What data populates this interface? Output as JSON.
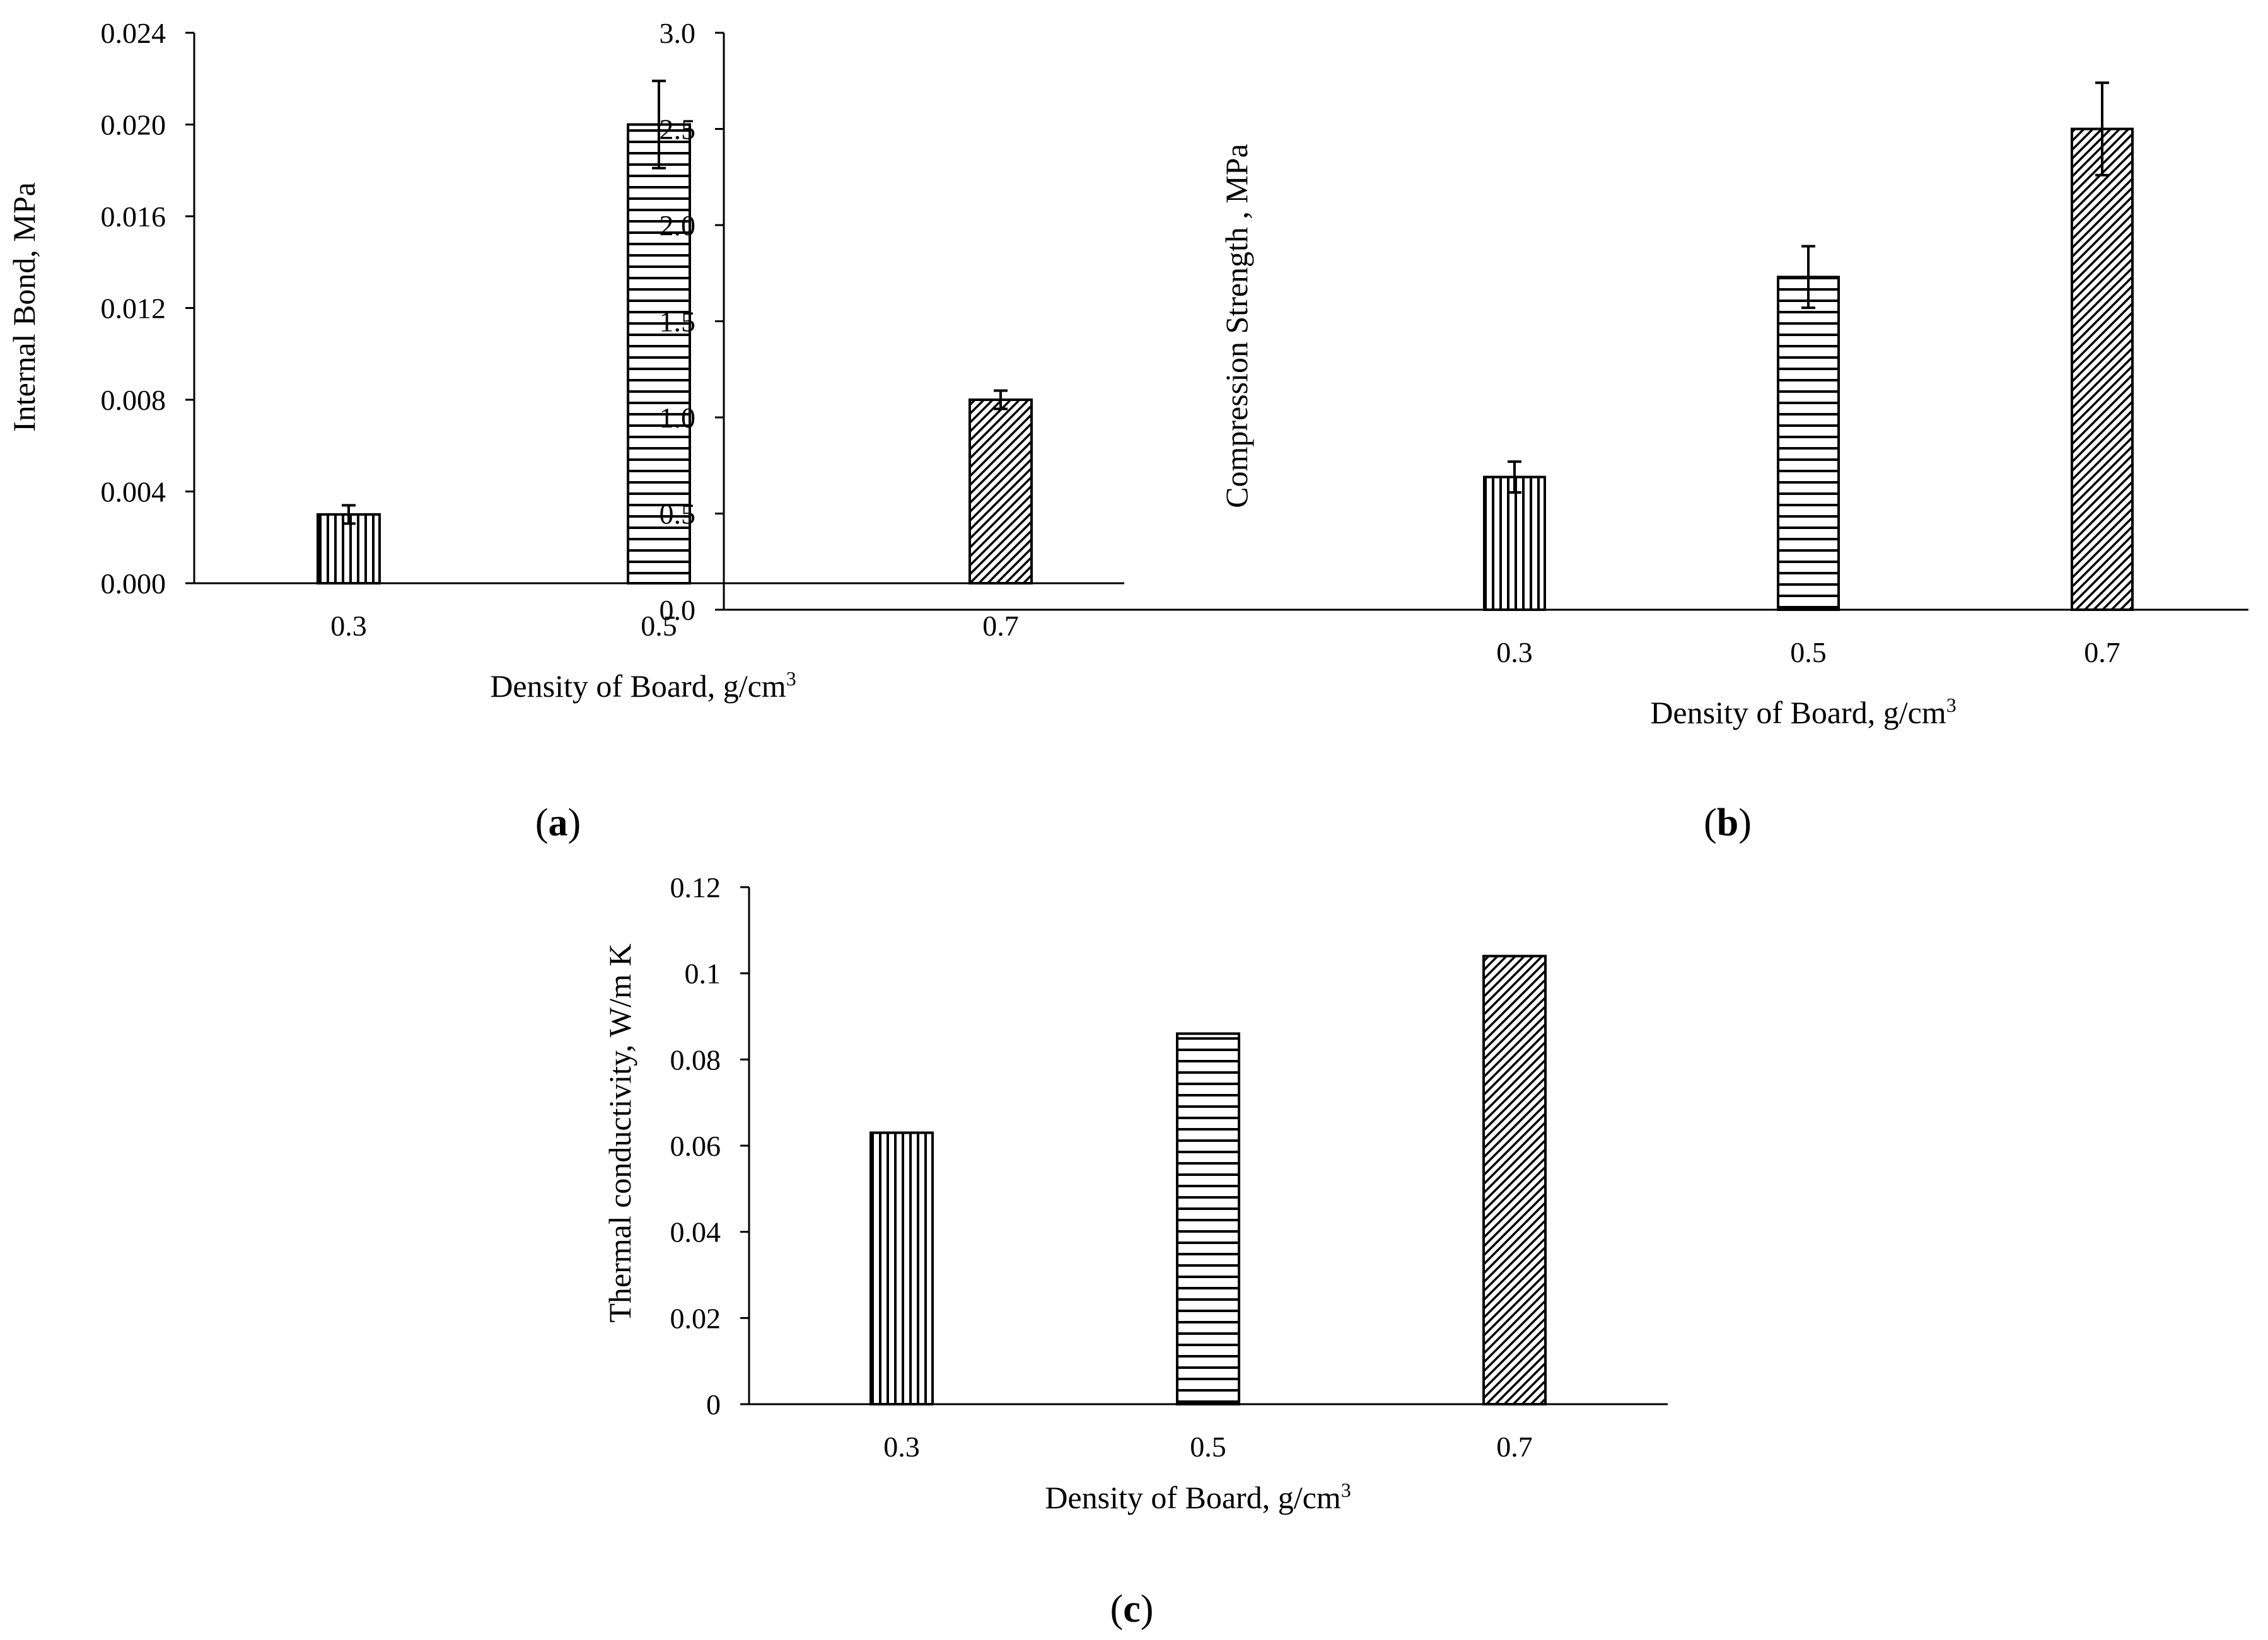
{
  "figure": {
    "panels": [
      {
        "id": "a",
        "open": "(",
        "letter": "a",
        "close": ")"
      },
      {
        "id": "b",
        "open": "(",
        "letter": "b",
        "close": ")"
      },
      {
        "id": "c",
        "open": "(",
        "letter": "c",
        "close": ")"
      }
    ]
  },
  "chart_data": [
    {
      "id": "a",
      "type": "bar",
      "title": "",
      "categories": [
        "0.3",
        "0.5",
        "0.7"
      ],
      "values": [
        0.003,
        0.02,
        0.008
      ],
      "error": [
        0.0004,
        0.0019,
        0.0004
      ],
      "patterns": [
        "vertical",
        "horizontal",
        "diagonal"
      ],
      "xlabel": {
        "text": "Density of Board, g/cm",
        "sup": "3"
      },
      "ylabel": "Internal  Bond, MPa",
      "ylim": [
        0,
        0.024
      ],
      "yticks": [
        "0.000",
        "0.004",
        "0.008",
        "0.012",
        "0.016",
        "0.020",
        "0.024"
      ],
      "grid": false
    },
    {
      "id": "b",
      "type": "bar",
      "title": "",
      "categories": [
        "0.3",
        "0.5",
        "0.7"
      ],
      "values": [
        0.69,
        1.73,
        2.5
      ],
      "error": [
        0.08,
        0.16,
        0.24
      ],
      "patterns": [
        "vertical",
        "horizontal",
        "diagonal"
      ],
      "xlabel": {
        "text": "Density of Board, g/cm",
        "sup": "3"
      },
      "ylabel": "Compression Strength , MPa",
      "ylim": [
        0,
        3.0
      ],
      "yticks": [
        "0.0",
        "0.5",
        "1.0",
        "1.5",
        "2.0",
        "2.5",
        "3.0"
      ],
      "grid": false
    },
    {
      "id": "c",
      "type": "bar",
      "title": "",
      "categories": [
        "0.3",
        "0.5",
        "0.7"
      ],
      "values": [
        0.063,
        0.086,
        0.104
      ],
      "error": null,
      "patterns": [
        "vertical",
        "horizontal",
        "diagonal"
      ],
      "xlabel": {
        "text": "Density of Board, g/cm",
        "sup": "3"
      },
      "ylabel": "Thermal conductivity, W/m K",
      "ylim": [
        0,
        0.12
      ],
      "yticks": [
        "0",
        "0.02",
        "0.04",
        "0.06",
        "0.08",
        "0.1",
        "0.12"
      ],
      "grid": false
    }
  ]
}
